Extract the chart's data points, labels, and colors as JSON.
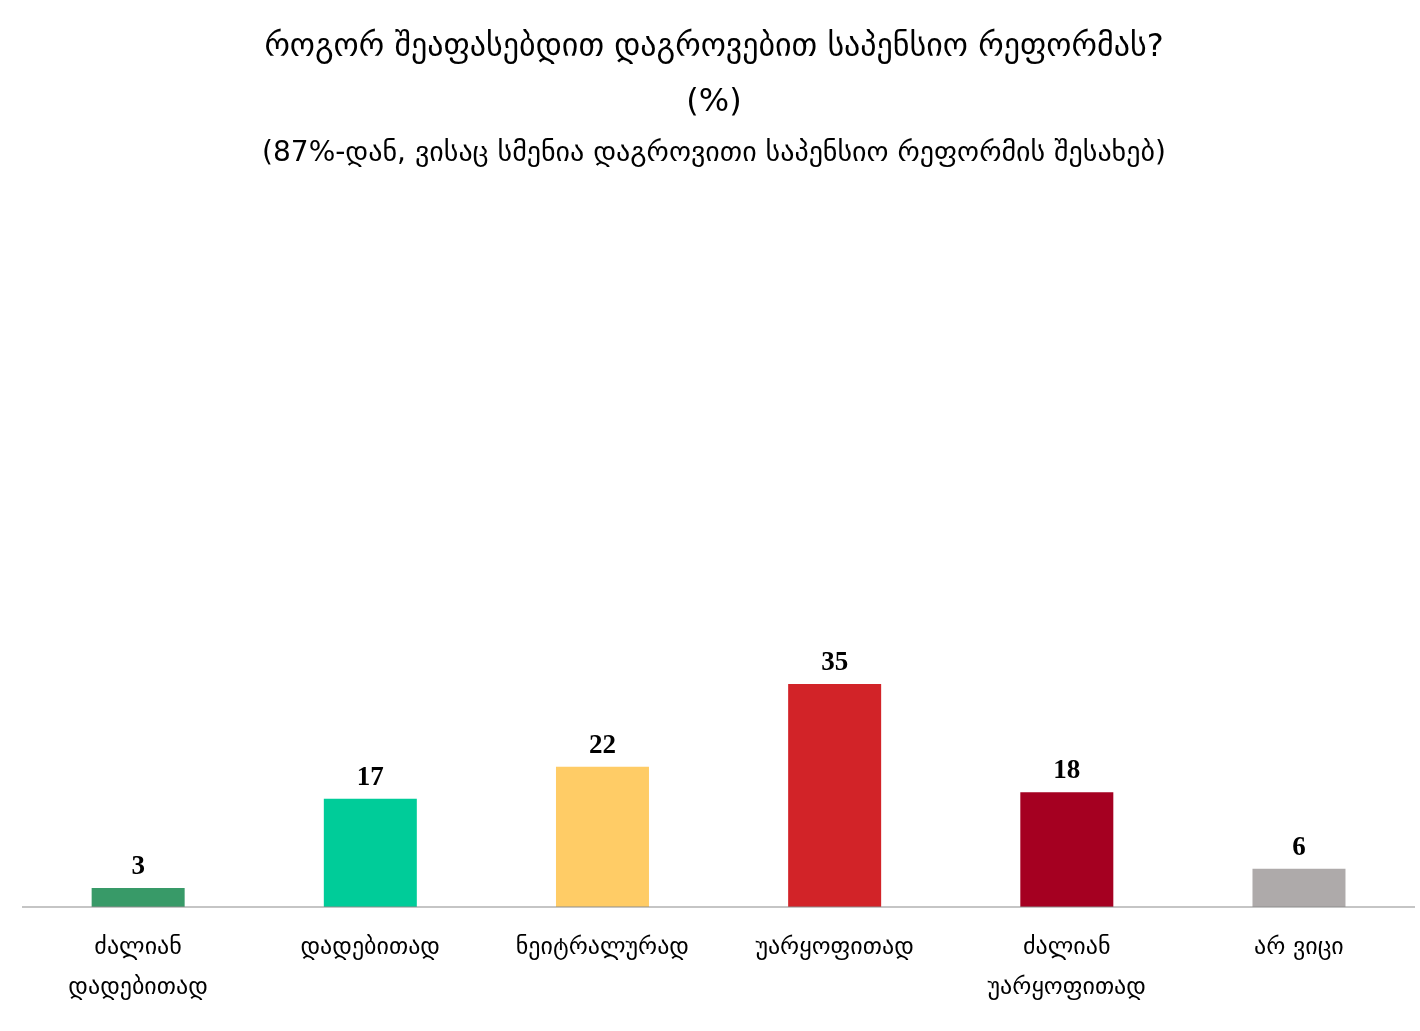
{
  "chart_data": {
    "type": "bar",
    "title": "როგორ შეაფასებდით დაგროვებით საპენსიო რეფორმას?\n(%)",
    "subtitle": "(87%-დან, ვისაც სმენია დაგროვითი საპენსიო რეფორმის შესახებ)",
    "categories": [
      "ძალიან დადებითად",
      "დადებითად",
      "ნეიტრალურად",
      "უარყოფითად",
      "ძალიან უარყოფითად",
      "არ ვიცი"
    ],
    "values": [
      3,
      17,
      22,
      35,
      18,
      6
    ],
    "colors": [
      "#389a68",
      "#00cc99",
      "#ffcc66",
      "#d22328",
      "#a50021",
      "#aeaaaa"
    ],
    "data_labels": true,
    "tick_labels": "x"
  }
}
